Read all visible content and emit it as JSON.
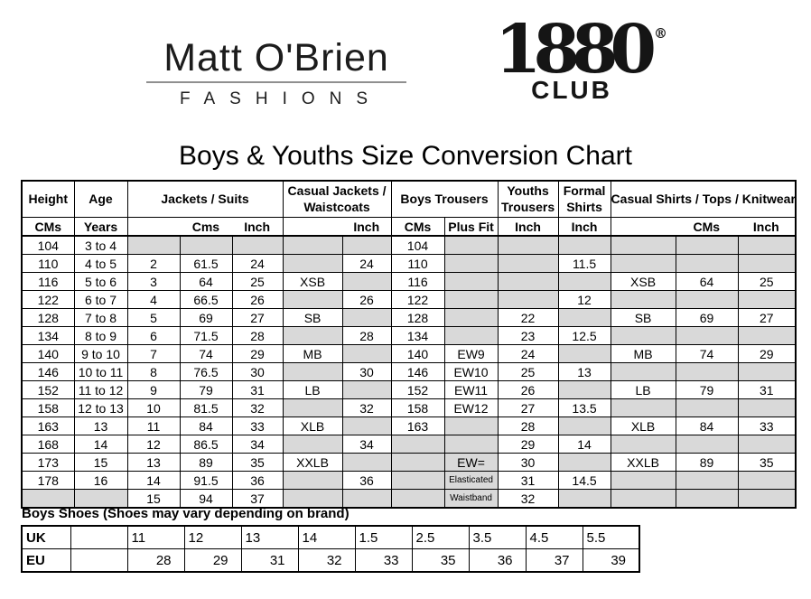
{
  "header": {
    "brand_name": "Matt O'Brien",
    "brand_tagline": "FASHIONS",
    "club_number": "1880",
    "club_reg": "®",
    "club_label": "CLUB"
  },
  "title": "Boys & Youths Size Conversion Chart",
  "size_table": {
    "groups": {
      "height": "Height",
      "age": "Age",
      "jackets": "Jackets / Suits",
      "casual_jackets": "Casual Jackets / Waistcoats",
      "boys_trousers": "Boys Trousers",
      "youths": "Youths Trousers",
      "formal": "Formal Shirts",
      "casual_shirts": "Casual Shirts / Tops / Knitwear"
    },
    "subheader": {
      "height": "CMs",
      "age": "Years",
      "jackets": [
        "",
        "Cms",
        "Inch"
      ],
      "casual_jackets": [
        "",
        "Inch"
      ],
      "boys_trousers": [
        "CMs",
        "Plus Fit"
      ],
      "youths": "Inch",
      "formal": "Inch",
      "casual_shirts": [
        "",
        "CMs",
        "Inch"
      ]
    },
    "rows": [
      [
        {
          "t": "104"
        },
        {
          "t": "3 to 4"
        },
        {
          "g": 1
        },
        {
          "g": 1
        },
        {
          "g": 1
        },
        {
          "g": 1
        },
        {
          "g": 1
        },
        {
          "t": "104"
        },
        {
          "g": 1
        },
        {
          "g": 1
        },
        {
          "g": 1
        },
        {
          "g": 1
        },
        {
          "g": 1
        },
        {
          "g": 1
        }
      ],
      [
        {
          "t": "110"
        },
        {
          "t": "4 to 5"
        },
        {
          "t": "2"
        },
        {
          "t": "61.5"
        },
        {
          "t": "24"
        },
        {
          "g": 1
        },
        {
          "t": "24"
        },
        {
          "t": "110"
        },
        {
          "g": 1
        },
        {
          "g": 1
        },
        {
          "t": "11.5"
        },
        {
          "g": 1
        },
        {
          "g": 1
        },
        {
          "g": 1
        }
      ],
      [
        {
          "t": "116"
        },
        {
          "t": "5 to 6"
        },
        {
          "t": "3"
        },
        {
          "t": "64"
        },
        {
          "t": "25"
        },
        {
          "t": "XSB"
        },
        {
          "g": 1
        },
        {
          "t": "116"
        },
        {
          "g": 1
        },
        {
          "g": 1
        },
        {
          "g": 1
        },
        {
          "t": "XSB"
        },
        {
          "t": "64"
        },
        {
          "t": "25"
        }
      ],
      [
        {
          "t": "122"
        },
        {
          "t": "6 to 7"
        },
        {
          "t": "4"
        },
        {
          "t": "66.5"
        },
        {
          "t": "26"
        },
        {
          "g": 1
        },
        {
          "t": "26"
        },
        {
          "t": "122"
        },
        {
          "g": 1
        },
        {
          "g": 1
        },
        {
          "t": "12"
        },
        {
          "g": 1
        },
        {
          "g": 1
        },
        {
          "g": 1
        }
      ],
      [
        {
          "t": "128"
        },
        {
          "t": "7 to 8"
        },
        {
          "t": "5"
        },
        {
          "t": "69"
        },
        {
          "t": "27"
        },
        {
          "t": "SB"
        },
        {
          "g": 1
        },
        {
          "t": "128"
        },
        {
          "g": 1
        },
        {
          "t": "22"
        },
        {
          "g": 1
        },
        {
          "t": "SB"
        },
        {
          "t": "69"
        },
        {
          "t": "27"
        }
      ],
      [
        {
          "t": "134"
        },
        {
          "t": "8 to 9"
        },
        {
          "t": "6"
        },
        {
          "t": "71.5"
        },
        {
          "t": "28"
        },
        {
          "g": 1
        },
        {
          "t": "28"
        },
        {
          "t": "134"
        },
        {
          "g": 1
        },
        {
          "t": "23"
        },
        {
          "t": "12.5"
        },
        {
          "g": 1
        },
        {
          "g": 1
        },
        {
          "g": 1
        }
      ],
      [
        {
          "t": "140"
        },
        {
          "t": "9 to 10"
        },
        {
          "t": "7"
        },
        {
          "t": "74"
        },
        {
          "t": "29"
        },
        {
          "t": "MB"
        },
        {
          "g": 1
        },
        {
          "t": "140"
        },
        {
          "t": "EW9"
        },
        {
          "t": "24"
        },
        {
          "g": 1
        },
        {
          "t": "MB"
        },
        {
          "t": "74"
        },
        {
          "t": "29"
        }
      ],
      [
        {
          "t": "146"
        },
        {
          "t": "10 to 11"
        },
        {
          "t": "8"
        },
        {
          "t": "76.5"
        },
        {
          "t": "30"
        },
        {
          "g": 1
        },
        {
          "t": "30"
        },
        {
          "t": "146"
        },
        {
          "t": "EW10"
        },
        {
          "t": "25"
        },
        {
          "t": "13"
        },
        {
          "g": 1
        },
        {
          "g": 1
        },
        {
          "g": 1
        }
      ],
      [
        {
          "t": "152"
        },
        {
          "t": "11 to 12"
        },
        {
          "t": "9"
        },
        {
          "t": "79"
        },
        {
          "t": "31"
        },
        {
          "t": "LB"
        },
        {
          "g": 1
        },
        {
          "t": "152"
        },
        {
          "t": "EW11"
        },
        {
          "t": "26"
        },
        {
          "g": 1
        },
        {
          "t": "LB"
        },
        {
          "t": "79"
        },
        {
          "t": "31"
        }
      ],
      [
        {
          "t": "158"
        },
        {
          "t": "12 to 13"
        },
        {
          "t": "10"
        },
        {
          "t": "81.5"
        },
        {
          "t": "32"
        },
        {
          "g": 1
        },
        {
          "t": "32"
        },
        {
          "t": "158"
        },
        {
          "t": "EW12"
        },
        {
          "t": "27"
        },
        {
          "t": "13.5"
        },
        {
          "g": 1
        },
        {
          "g": 1
        },
        {
          "g": 1
        }
      ],
      [
        {
          "t": "163"
        },
        {
          "t": "13"
        },
        {
          "t": "11"
        },
        {
          "t": "84"
        },
        {
          "t": "33"
        },
        {
          "t": "XLB"
        },
        {
          "g": 1
        },
        {
          "t": "163"
        },
        {
          "g": 1
        },
        {
          "t": "28"
        },
        {
          "g": 1
        },
        {
          "t": "XLB"
        },
        {
          "t": "84"
        },
        {
          "t": "33"
        }
      ],
      [
        {
          "t": "168"
        },
        {
          "t": "14"
        },
        {
          "t": "12"
        },
        {
          "t": "86.5"
        },
        {
          "t": "34"
        },
        {
          "g": 1
        },
        {
          "t": "34"
        },
        {
          "g": 1
        },
        {
          "g": 1
        },
        {
          "t": "29"
        },
        {
          "t": "14"
        },
        {
          "g": 1
        },
        {
          "g": 1
        },
        {
          "g": 1
        }
      ],
      [
        {
          "t": "173"
        },
        {
          "t": "15"
        },
        {
          "t": "13"
        },
        {
          "t": "89"
        },
        {
          "t": "35"
        },
        {
          "t": "XXLB"
        },
        {
          "g": 1
        },
        {
          "g": 1
        },
        {
          "t": "EW=",
          "g": 1
        },
        {
          "t": "30"
        },
        {
          "g": 1
        },
        {
          "t": "XXLB"
        },
        {
          "t": "89"
        },
        {
          "t": "35"
        }
      ],
      [
        {
          "t": "178"
        },
        {
          "t": "16"
        },
        {
          "t": "14"
        },
        {
          "t": "91.5"
        },
        {
          "t": "36"
        },
        {
          "g": 1
        },
        {
          "t": "36"
        },
        {
          "g": 1
        },
        {
          "t": "Elasticated",
          "g": 1,
          "s": 1
        },
        {
          "t": "31"
        },
        {
          "t": "14.5"
        },
        {
          "g": 1
        },
        {
          "g": 1
        },
        {
          "g": 1
        }
      ],
      [
        {
          "g": 1
        },
        {
          "g": 1
        },
        {
          "t": "15"
        },
        {
          "t": "94"
        },
        {
          "t": "37"
        },
        {
          "g": 1
        },
        {
          "g": 1
        },
        {
          "g": 1
        },
        {
          "t": "Waistband",
          "g": 1,
          "s": 1
        },
        {
          "t": "32"
        },
        {
          "g": 1
        },
        {
          "g": 1
        },
        {
          "g": 1
        },
        {
          "g": 1
        }
      ]
    ]
  },
  "shoes": {
    "heading": "Boys Shoes  (Shoes may vary depending on brand)",
    "rows": [
      {
        "label": "UK",
        "align": "left",
        "values": [
          "",
          "11",
          "12",
          "13",
          "14",
          "1.5",
          "2.5",
          "3.5",
          "4.5",
          "5.5"
        ]
      },
      {
        "label": "EU",
        "align": "right",
        "values": [
          "",
          "28",
          "29",
          "31",
          "32",
          "33",
          "35",
          "36",
          "37",
          "39"
        ]
      }
    ]
  }
}
